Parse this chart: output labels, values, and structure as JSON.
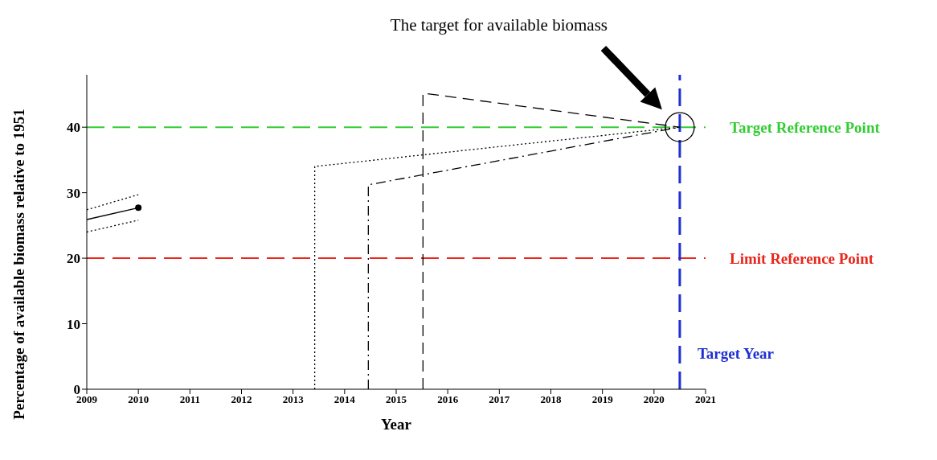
{
  "chart_data": {
    "type": "line",
    "xlabel": "Year",
    "ylabel": "Percentage of available biomass relative to 1951",
    "xlim": [
      2009,
      2021
    ],
    "xticks": [
      2009,
      2010,
      2011,
      2012,
      2013,
      2014,
      2015,
      2016,
      2017,
      2018,
      2019,
      2020,
      2021
    ],
    "ylim": [
      0,
      48
    ],
    "yticks": [
      0,
      10,
      20,
      30,
      40
    ],
    "series": [
      {
        "color": "#000000",
        "x": [
          2009,
          2010
        ],
        "values": [
          25.9,
          27.7
        ],
        "marker": "circle",
        "line_style": "solid"
      },
      {
        "color": "#000000",
        "x": [
          2009,
          2010
        ],
        "values": [
          24.0,
          25.8
        ],
        "marker": "none",
        "line_style": "dotted"
      },
      {
        "color": "#000000",
        "x": [
          2009,
          2010
        ],
        "values": [
          27.4,
          29.7
        ],
        "marker": "none",
        "line_style": "dotted"
      },
      {
        "color": "#000000",
        "x": [
          2013.42,
          2013.42,
          2020.5
        ],
        "values": [
          0,
          34,
          40
        ],
        "marker": "none",
        "line_style": "dotted"
      },
      {
        "color": "#000000",
        "x": [
          2014.46,
          2014.46,
          2020.5
        ],
        "values": [
          0,
          31.2,
          40
        ],
        "marker": "none",
        "line_style": "dashdot"
      },
      {
        "color": "#000000",
        "x": [
          2015.52,
          2015.52,
          2020.5
        ],
        "values": [
          0,
          45.2,
          40
        ],
        "marker": "none",
        "line_style": "dashed"
      }
    ],
    "ref_lines": [
      {
        "axis": "y",
        "value": 40,
        "label": "Target Reference Point",
        "color": "#33cc33",
        "line_style": "dashed"
      },
      {
        "axis": "y",
        "value": 20,
        "label": "Limit Reference Point",
        "color": "#e8261b",
        "line_style": "dashed"
      },
      {
        "axis": "x",
        "value": 2020.5,
        "label": "Target Year",
        "color": "#1f2fd0",
        "line_style": "dashed"
      }
    ],
    "annotations": [
      "The target for available biomass"
    ]
  }
}
